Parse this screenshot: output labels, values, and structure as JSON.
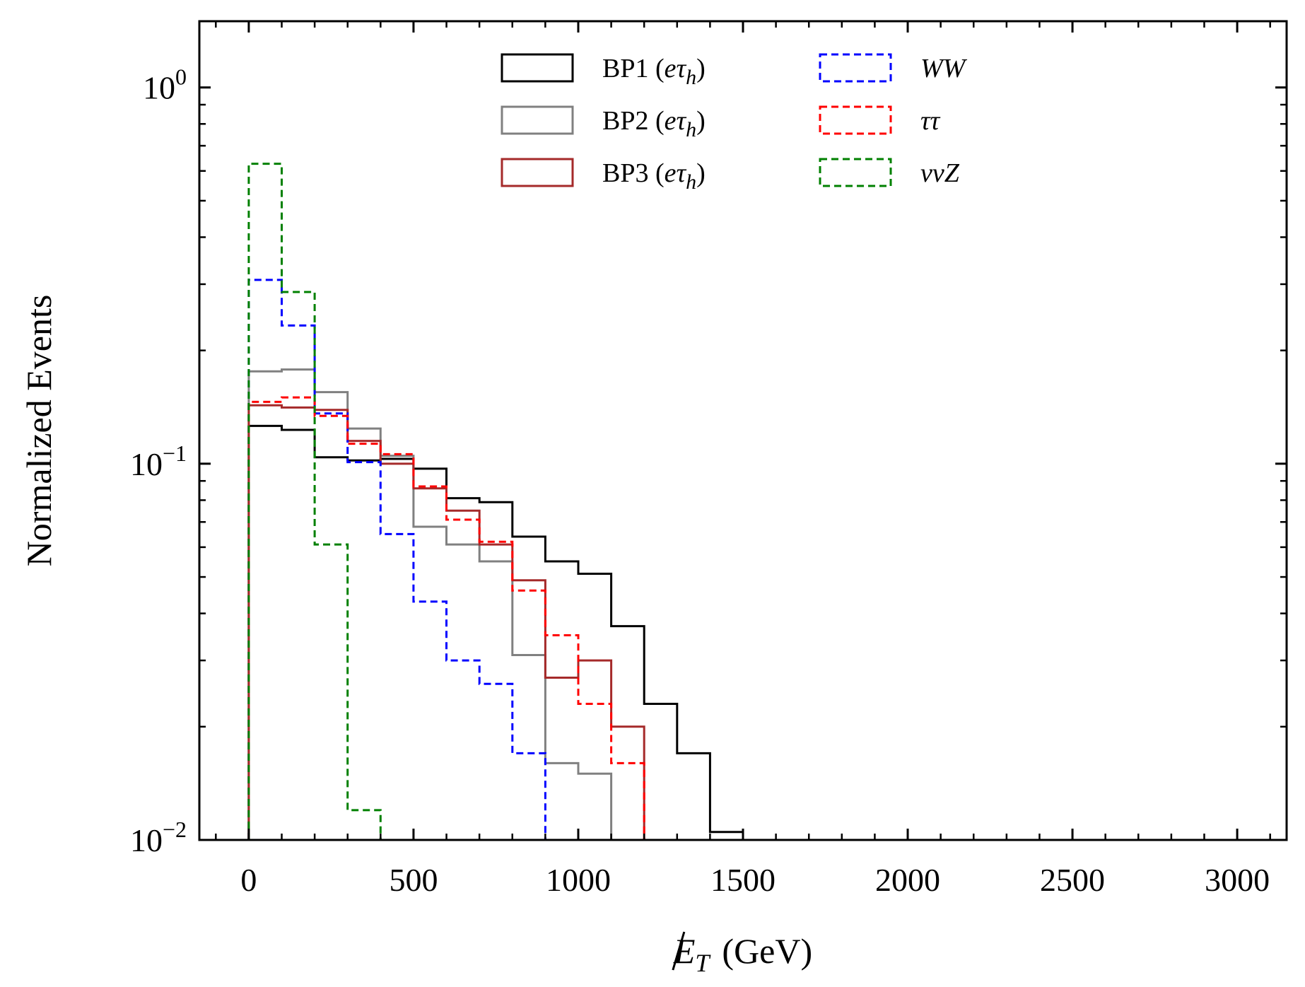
{
  "chart_data": {
    "type": "histogram",
    "ylabel": "Normalized Events",
    "xlabel_main": "E",
    "xlabel_sub": "T",
    "xlabel_unit": "(GeV)",
    "yscale": "log",
    "xlim": [
      -150,
      3150
    ],
    "ylim": [
      0.01,
      1.5
    ],
    "xticks": [
      0,
      500,
      1000,
      1500,
      2000,
      2500,
      3000
    ],
    "xtick_labels": [
      "0",
      "500",
      "1000",
      "1500",
      "2000",
      "2500",
      "3000"
    ],
    "ytick_labels": [
      {
        "base": "10",
        "exp": "0",
        "value": 1
      },
      {
        "base": "10",
        "exp": "−1",
        "value": 0.1
      },
      {
        "base": "10",
        "exp": "−2",
        "value": 0.01
      }
    ],
    "bin_edges": [
      0,
      100,
      200,
      300,
      400,
      500,
      600,
      700,
      800,
      900,
      1000,
      1100,
      1200,
      1300,
      1400,
      1500
    ],
    "series": [
      {
        "name": "BP1 (eτh)",
        "label_main": "BP1 (",
        "label_sym": "eτ",
        "label_sub": "h",
        "label_close": ")",
        "color": "#000000",
        "dashed": false,
        "values": [
          0.126,
          0.123,
          0.104,
          0.102,
          0.103,
          0.097,
          0.081,
          0.079,
          0.064,
          0.055,
          0.051,
          0.037,
          0.023,
          0.017,
          0.0105
        ]
      },
      {
        "name": "BP2 (eτh)",
        "label_main": "BP2 (",
        "label_sym": "eτ",
        "label_sub": "h",
        "label_close": ")",
        "color": "#808080",
        "dashed": false,
        "values": [
          0.176,
          0.178,
          0.155,
          0.124,
          0.105,
          0.068,
          0.061,
          0.055,
          0.031,
          0.016,
          0.015,
          0.0,
          0.0,
          0.0,
          0.0
        ]
      },
      {
        "name": "BP3 (eτh)",
        "label_main": "BP3 (",
        "label_sym": "eτ",
        "label_sub": "h",
        "label_close": ")",
        "color": "#a52a2a",
        "dashed": false,
        "values": [
          0.143,
          0.141,
          0.139,
          0.115,
          0.1,
          0.086,
          0.075,
          0.061,
          0.049,
          0.027,
          0.03,
          0.02,
          0.0,
          0.0,
          0.0
        ]
      },
      {
        "name": "WW",
        "label_main": "",
        "label_sym": "WW",
        "label_sub": "",
        "label_close": "",
        "color": "#0000ff",
        "dashed": true,
        "values": [
          0.308,
          0.233,
          0.136,
          0.101,
          0.065,
          0.043,
          0.03,
          0.026,
          0.017,
          0.0,
          0.0,
          0.0,
          0.0,
          0.0,
          0.0
        ]
      },
      {
        "name": "ττ",
        "label_main": "",
        "label_sym": "ττ",
        "label_sub": "",
        "label_close": "",
        "color": "#ff0000",
        "dashed": true,
        "values": [
          0.146,
          0.15,
          0.134,
          0.113,
          0.106,
          0.087,
          0.071,
          0.062,
          0.046,
          0.035,
          0.023,
          0.016,
          0.0,
          0.0,
          0.0
        ]
      },
      {
        "name": "ννZ",
        "label_main": "",
        "label_sym": "ννZ",
        "label_sub": "",
        "label_close": "",
        "color": "#008000",
        "dashed": true,
        "values": [
          0.627,
          0.286,
          0.061,
          0.012,
          0.0,
          0.0,
          0.0,
          0.0,
          0.0,
          0.0,
          0.0,
          0.0,
          0.0,
          0.0,
          0.0
        ]
      }
    ],
    "legend": {
      "position": "upper-center",
      "columns": 2
    }
  }
}
